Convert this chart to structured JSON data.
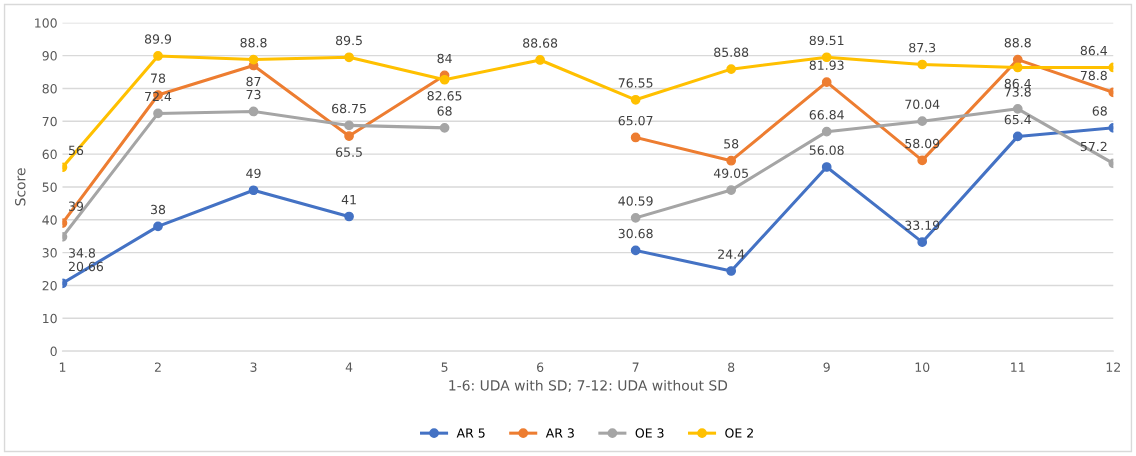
{
  "chart_data": {
    "type": "line",
    "xlabel": "1-6: UDA with SD; 7-12: UDA without SD",
    "ylabel": "Score",
    "categories": [
      "1",
      "2",
      "3",
      "4",
      "5",
      "6",
      "7",
      "8",
      "9",
      "10",
      "11",
      "12"
    ],
    "series": [
      {
        "name": "AR 5",
        "color": "#4472c4",
        "values": [
          20.66,
          38,
          49,
          41,
          null,
          null,
          30.68,
          24.4,
          56.08,
          33.19,
          65.4,
          68
        ]
      },
      {
        "name": "AR 3",
        "color": "#ed7d31",
        "values": [
          39,
          78,
          87,
          65.5,
          84,
          null,
          65.07,
          58,
          81.93,
          58.09,
          88.8,
          78.8
        ]
      },
      {
        "name": "OE 3",
        "color": "#a5a5a5",
        "values": [
          34.8,
          72.4,
          73,
          68.75,
          68,
          null,
          40.59,
          49.05,
          66.84,
          70.04,
          73.8,
          57.2
        ]
      },
      {
        "name": "OE 2",
        "color": "#ffc000",
        "values": [
          56,
          89.9,
          88.8,
          89.5,
          82.65,
          88.68,
          76.55,
          85.88,
          89.51,
          87.3,
          86.4,
          86.4
        ]
      }
    ],
    "ylim": [
      0,
      100
    ],
    "yticks": [
      0,
      10,
      20,
      30,
      40,
      50,
      60,
      70,
      80,
      90,
      100
    ],
    "grid": "y",
    "legend": "bottom",
    "marker": "circle",
    "line_style": "solid",
    "data_labels": true
  }
}
